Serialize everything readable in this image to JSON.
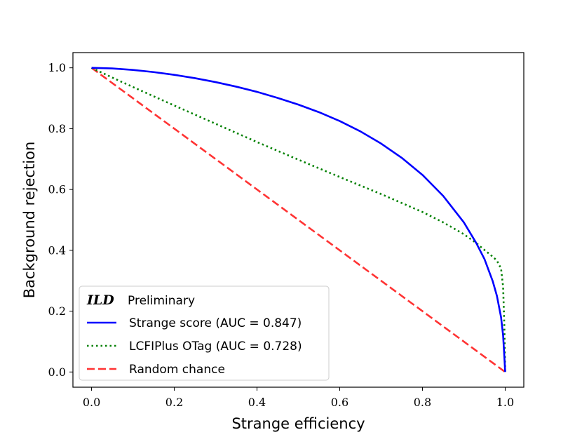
{
  "chart_data": {
    "type": "line",
    "xlabel": "Strange efficiency",
    "ylabel": "Background rejection",
    "xlim": [
      -0.045,
      1.045
    ],
    "ylim": [
      -0.05,
      1.05
    ],
    "xticks": [
      "0.0",
      "0.2",
      "0.4",
      "0.6",
      "0.8",
      "1.0"
    ],
    "yticks": [
      "0.0",
      "0.2",
      "0.4",
      "0.6",
      "0.8",
      "1.0"
    ],
    "grid": false,
    "legend_placement": "bottom-left",
    "legend_title": {
      "bold": "ILD",
      "rest": "Preliminary"
    },
    "series": [
      {
        "name": "Strange score (AUC = 0.847)",
        "color": "#0000ff",
        "style": "solid",
        "x": [
          0.0,
          0.05,
          0.1,
          0.15,
          0.2,
          0.25,
          0.3,
          0.35,
          0.4,
          0.45,
          0.5,
          0.55,
          0.6,
          0.65,
          0.7,
          0.75,
          0.8,
          0.85,
          0.9,
          0.93,
          0.95,
          0.97,
          0.98,
          0.99,
          0.995,
          0.998,
          1.0
        ],
        "y": [
          1.0,
          0.998,
          0.993,
          0.986,
          0.977,
          0.966,
          0.953,
          0.938,
          0.921,
          0.901,
          0.879,
          0.854,
          0.825,
          0.791,
          0.751,
          0.704,
          0.648,
          0.579,
          0.492,
          0.424,
          0.371,
          0.298,
          0.25,
          0.18,
          0.12,
          0.05,
          0.0
        ]
      },
      {
        "name": "LCFIPlus OTag (AUC = 0.728)",
        "color": "#008000",
        "style": "dotted",
        "x": [
          0.0,
          0.05,
          0.1,
          0.2,
          0.3,
          0.4,
          0.5,
          0.6,
          0.7,
          0.8,
          0.85,
          0.9,
          0.93,
          0.95,
          0.97,
          0.98,
          0.99,
          0.995,
          0.998,
          1.0
        ],
        "y": [
          1.0,
          0.968,
          0.937,
          0.876,
          0.816,
          0.756,
          0.698,
          0.641,
          0.585,
          0.526,
          0.492,
          0.453,
          0.424,
          0.401,
          0.379,
          0.366,
          0.34,
          0.28,
          0.15,
          0.0
        ]
      },
      {
        "name": "Random chance",
        "color": "#ff3333",
        "style": "dashed",
        "x": [
          0.0,
          1.0
        ],
        "y": [
          1.0,
          0.0
        ]
      }
    ]
  }
}
